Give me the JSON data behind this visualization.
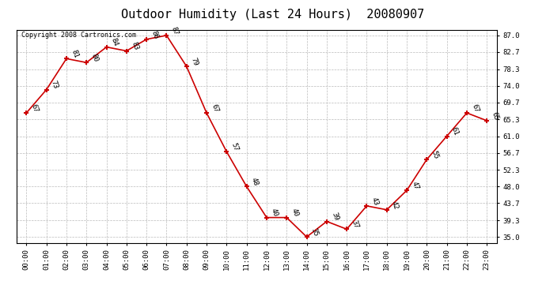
{
  "title": "Outdoor Humidity (Last 24 Hours)  20080907",
  "copyright": "Copyright 2008 Cartronics.com",
  "hours": [
    "00:00",
    "01:00",
    "02:00",
    "03:00",
    "04:00",
    "05:00",
    "06:00",
    "07:00",
    "08:00",
    "09:00",
    "10:00",
    "11:00",
    "12:00",
    "13:00",
    "14:00",
    "15:00",
    "16:00",
    "17:00",
    "18:00",
    "19:00",
    "20:00",
    "21:00",
    "22:00",
    "23:00"
  ],
  "values": [
    67,
    73,
    81,
    80,
    84,
    83,
    86,
    87,
    79,
    67,
    57,
    48,
    40,
    40,
    35,
    39,
    37,
    43,
    42,
    47,
    55,
    61,
    67,
    65
  ],
  "yticks": [
    35.0,
    39.3,
    43.7,
    48.0,
    52.3,
    56.7,
    61.0,
    65.3,
    69.7,
    74.0,
    78.3,
    82.7,
    87.0
  ],
  "line_color": "#cc0000",
  "marker_color": "#cc0000",
  "bg_color": "#ffffff",
  "plot_bg_color": "#ffffff",
  "grid_color": "#bbbbbb",
  "title_fontsize": 11,
  "label_fontsize": 6.5,
  "tick_fontsize": 6.5,
  "copyright_fontsize": 6,
  "ylim_min": 33.5,
  "ylim_max": 88.5
}
